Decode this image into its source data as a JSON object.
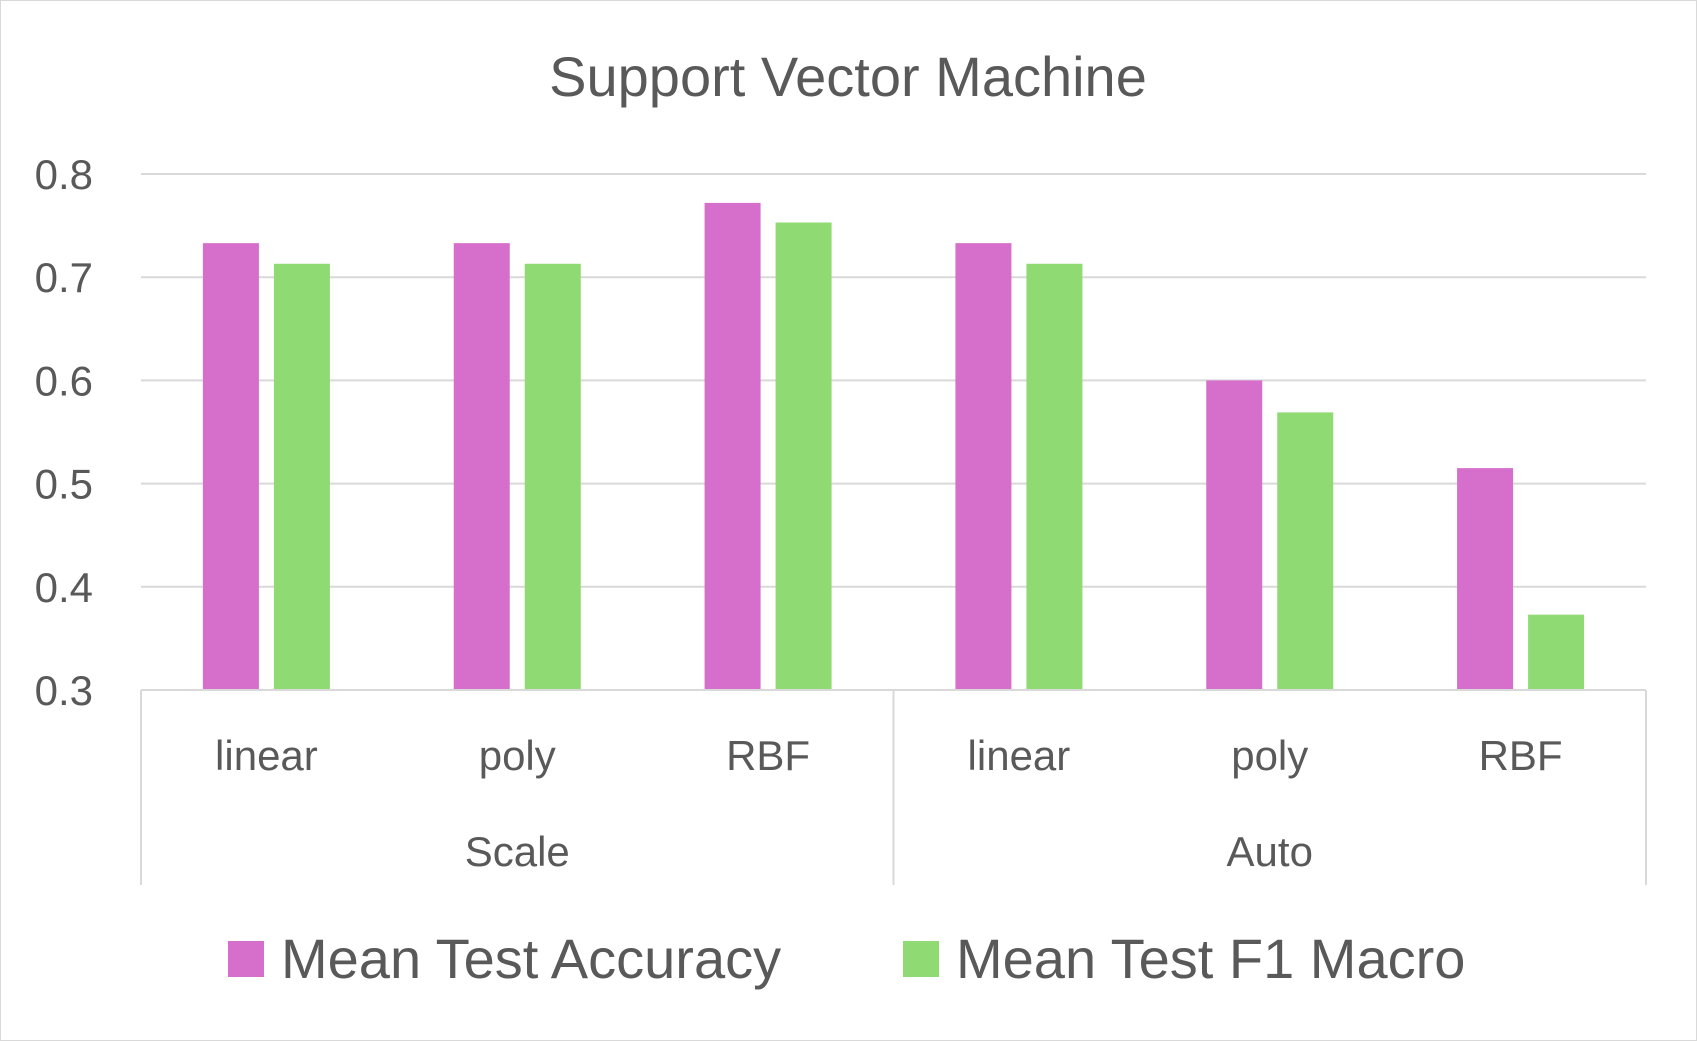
{
  "chart_data": {
    "type": "bar",
    "title": "Support Vector Machine",
    "xlabel": "",
    "ylabel": "",
    "ylim": [
      0.3,
      0.8
    ],
    "yticks": [
      "0.3",
      "0.4",
      "0.5",
      "0.6",
      "0.7",
      "0.8"
    ],
    "grid": true,
    "legend_position": "bottom",
    "groups": [
      {
        "label": "Scale",
        "categories": [
          "linear",
          "poly",
          "RBF"
        ]
      },
      {
        "label": "Auto",
        "categories": [
          "linear",
          "poly",
          "RBF"
        ]
      }
    ],
    "series": [
      {
        "name": "Mean Test Accuracy",
        "color": "#D66FCB",
        "values": [
          0.733,
          0.733,
          0.772,
          0.733,
          0.6,
          0.515
        ]
      },
      {
        "name": "Mean Test F1 Macro",
        "color": "#8FDA73",
        "values": [
          0.713,
          0.713,
          0.753,
          0.713,
          0.569,
          0.373
        ]
      }
    ]
  }
}
